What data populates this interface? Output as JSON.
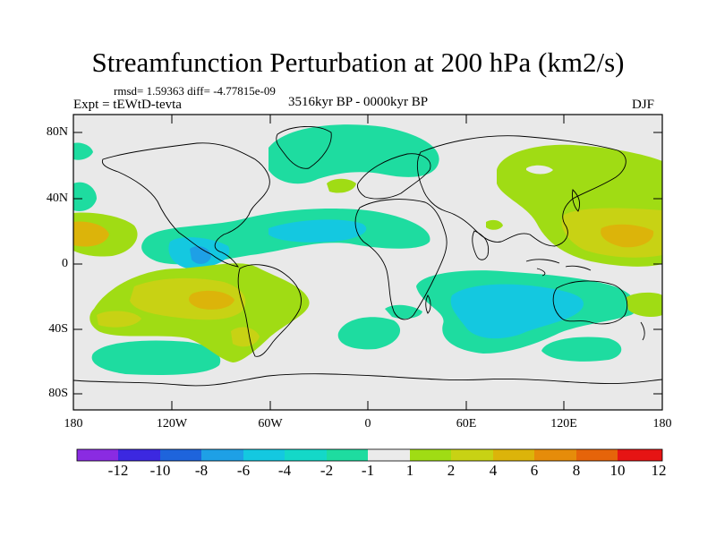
{
  "title": "Streamfunction Perturbation at 200 hPa (km2/s)",
  "stats": "rmsd= 1.59363 diff= -4.77815e-09",
  "experiment": "Expt = tEWtD-tevta",
  "period": "3516kyr BP - 0000kyr BP",
  "season": "DJF",
  "colors": {
    "ocean_bg": "#e9e9e9",
    "coast": "#000000",
    "levels": [
      "#8a2be2",
      "#3c28e0",
      "#1e64dc",
      "#1ea0e6",
      "#14c8e0",
      "#1edca0",
      "#ebebeb",
      "#a0dc14",
      "#c8d214",
      "#dcb40a",
      "#e68c0a",
      "#e6640a",
      "#e63c0a",
      "#e61414"
    ]
  },
  "map": {
    "lat_ticks": [
      "80N",
      "40N",
      "0",
      "40S",
      "80S"
    ],
    "lon_ticks": [
      "180",
      "120W",
      "60W",
      "0",
      "60E",
      "120E",
      "180"
    ]
  },
  "legend": {
    "labels": [
      "-12",
      "-10",
      "-8",
      "-6",
      "-4",
      "-2",
      "-1",
      "1",
      "2",
      "4",
      "6",
      "8",
      "10",
      "12"
    ]
  }
}
